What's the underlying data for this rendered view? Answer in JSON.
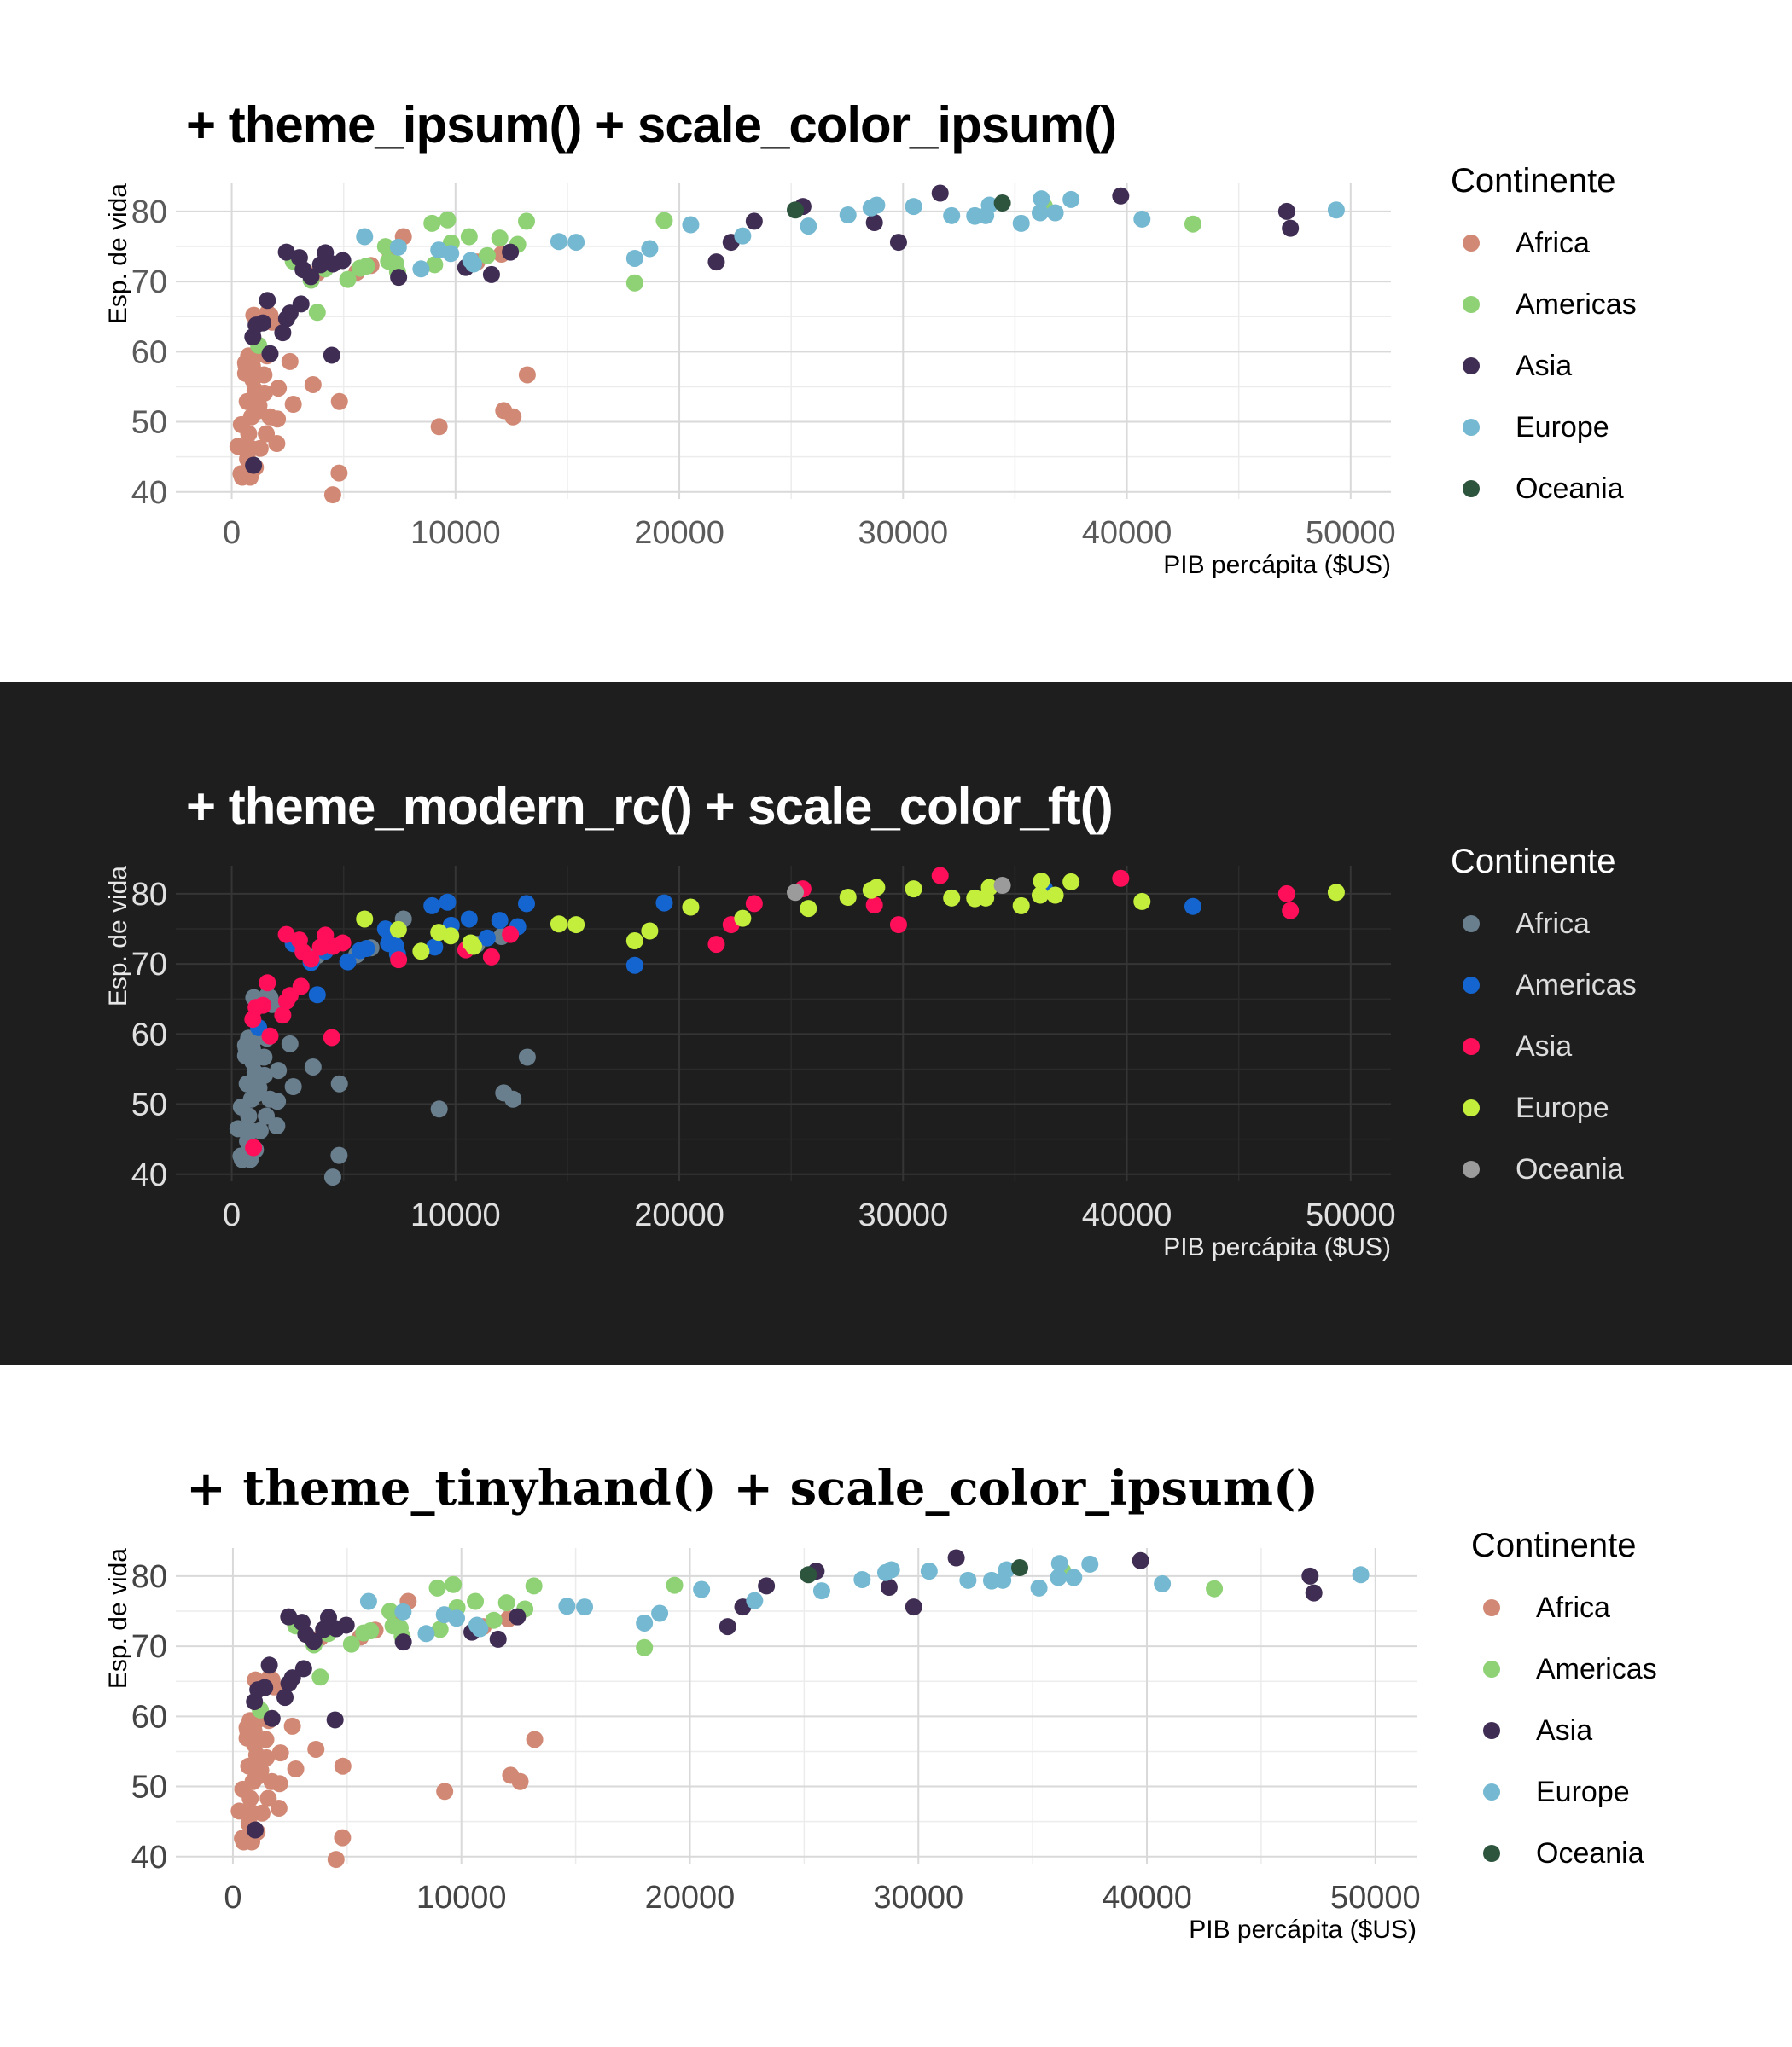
{
  "chart_data": [
    {
      "type": "scatter",
      "title": "+ theme_ipsum() + scale_color_ipsum()",
      "xlabel": "PIB percápita ($US)",
      "ylabel": "Esp. de vida",
      "xlim": [
        -2500,
        51800
      ],
      "ylim": [
        39,
        84
      ],
      "x_ticks": [
        "0",
        "10000",
        "20000",
        "30000",
        "40000",
        "50000"
      ],
      "y_ticks": [
        "40",
        "50",
        "60",
        "70",
        "80"
      ],
      "legend_title": "Continente",
      "legend_position": "right",
      "grid": true,
      "theme": "light",
      "colors": {
        "Africa": "#d18975",
        "Americas": "#8fd175",
        "Asia": "#3f2d54",
        "Europe": "#75b8d1",
        "Oceania": "#2d543d"
      }
    },
    {
      "type": "scatter",
      "title": "+ theme_modern_rc() + scale_color_ft()",
      "xlabel": "PIB percápita ($US)",
      "ylabel": "Esp. de vida",
      "xlim": [
        -2500,
        51800
      ],
      "ylim": [
        39,
        84
      ],
      "x_ticks": [
        "0",
        "10000",
        "20000",
        "30000",
        "40000",
        "50000"
      ],
      "y_ticks": [
        "40",
        "50",
        "60",
        "70",
        "80"
      ],
      "legend_title": "Continente",
      "legend_position": "right",
      "grid": true,
      "theme": "dark",
      "colors": {
        "Africa": "#6a7f8e",
        "Americas": "#1565d0",
        "Asia": "#ff0f5a",
        "Europe": "#c3ef3c",
        "Oceania": "#9b9b9b"
      }
    },
    {
      "type": "scatter",
      "title": "+ theme_tinyhand() + scale_color_ipsum()",
      "xlabel": "PIB percápita ($US)",
      "ylabel": "Esp. de vida",
      "xlim": [
        -2500,
        51800
      ],
      "ylim": [
        39,
        84
      ],
      "x_ticks": [
        "0",
        "10000",
        "20000",
        "30000",
        "40000",
        "50000"
      ],
      "y_ticks": [
        "40",
        "50",
        "60",
        "70",
        "80"
      ],
      "legend_title": "Continente",
      "legend_position": "right",
      "grid": true,
      "theme": "light",
      "colors": {
        "Africa": "#d18975",
        "Americas": "#8fd175",
        "Asia": "#3f2d54",
        "Europe": "#75b8d1",
        "Oceania": "#2d543d"
      }
    }
  ],
  "series": {
    "Africa": [
      [
        6223,
        72.3
      ],
      [
        4797,
        42.7
      ],
      [
        1441,
        56.7
      ],
      [
        12570,
        50.7
      ],
      [
        1217,
        52.3
      ],
      [
        430,
        49.6
      ],
      [
        2042,
        50.4
      ],
      [
        706,
        44.7
      ],
      [
        1704,
        50.7
      ],
      [
        986,
        65.2
      ],
      [
        277,
        46.5
      ],
      [
        3633,
        55.3
      ],
      [
        1545,
        48.3
      ],
      [
        2082,
        54.8
      ],
      [
        5581,
        71.3
      ],
      [
        12154,
        51.6
      ],
      [
        641,
        58.0
      ],
      [
        691,
        52.9
      ],
      [
        13206,
        56.7
      ],
      [
        753,
        59.4
      ],
      [
        1327,
        60.0
      ],
      [
        943,
        56.0
      ],
      [
        580,
        46.4
      ],
      [
        1463,
        54.1
      ],
      [
        1569,
        59.4
      ],
      [
        415,
        42.6
      ],
      [
        12057,
        73.9
      ],
      [
        1045,
        59.4
      ],
      [
        759,
        48.3
      ],
      [
        1042,
        54.5
      ],
      [
        1803,
        64.2
      ],
      [
        10957,
        72.8
      ],
      [
        3820,
        71.2
      ],
      [
        824,
        42.1
      ],
      [
        4811,
        52.9
      ],
      [
        620,
        56.9
      ],
      [
        2014,
        46.9
      ],
      [
        7670,
        76.4
      ],
      [
        863,
        46.2
      ],
      [
        1598,
        65.5
      ],
      [
        1712,
        65.2
      ],
      [
        862,
        43.5
      ],
      [
        926,
        57.9
      ],
      [
        9270,
        49.3
      ],
      [
        2602,
        58.6
      ],
      [
        4513,
        39.6
      ],
      [
        2749,
        52.5
      ],
      [
        619,
        58.4
      ],
      [
        883,
        50.7
      ],
      [
        1056,
        43.5
      ],
      [
        470,
        42.4
      ],
      [
        1271,
        46.2
      ],
      [
        7093,
        73.9
      ],
      [
        1133,
        51.5
      ],
      [
        470,
        42.1
      ]
    ],
    "Americas": [
      [
        12779,
        75.3
      ],
      [
        3822,
        65.6
      ],
      [
        9066,
        72.4
      ],
      [
        36319,
        80.7
      ],
      [
        13172,
        78.6
      ],
      [
        7007,
        72.9
      ],
      [
        9645,
        78.8
      ],
      [
        8948,
        78.3
      ],
      [
        6025,
        72.2
      ],
      [
        6873,
        74.99
      ],
      [
        5728,
        71.9
      ],
      [
        5186,
        70.3
      ],
      [
        1202,
        60.9
      ],
      [
        3548,
        70.2
      ],
      [
        7321,
        72.6
      ],
      [
        11978,
        76.2
      ],
      [
        2749,
        72.9
      ],
      [
        9809,
        75.5
      ],
      [
        4173,
        71.8
      ],
      [
        7408,
        71.4
      ],
      [
        19329,
        78.7
      ],
      [
        18009,
        69.8
      ],
      [
        42952,
        78.2
      ],
      [
        10611,
        76.4
      ],
      [
        11416,
        73.7
      ]
    ],
    "Asia": [
      [
        975,
        43.8
      ],
      [
        29796,
        75.6
      ],
      [
        1391,
        64.1
      ],
      [
        1713,
        59.7
      ],
      [
        4959,
        73.0
      ],
      [
        39725,
        82.2
      ],
      [
        2452,
        64.7
      ],
      [
        3541,
        70.7
      ],
      [
        11606,
        71.0
      ],
      [
        4471,
        59.5
      ],
      [
        25523,
        80.7
      ],
      [
        31656,
        82.6
      ],
      [
        4519,
        72.5
      ],
      [
        1593,
        67.3
      ],
      [
        23348,
        78.6
      ],
      [
        47307,
        77.6
      ],
      [
        10461,
        72.0
      ],
      [
        12452,
        74.2
      ],
      [
        3096,
        66.8
      ],
      [
        944,
        62.1
      ],
      [
        1091,
        63.8
      ],
      [
        22316,
        75.6
      ],
      [
        2606,
        65.5
      ],
      [
        3190,
        71.7
      ],
      [
        21655,
        72.8
      ],
      [
        47143,
        80.0
      ],
      [
        3970,
        72.4
      ],
      [
        4185,
        74.1
      ],
      [
        28718,
        78.4
      ],
      [
        7458,
        70.6
      ],
      [
        2442,
        74.2
      ],
      [
        3025,
        73.4
      ],
      [
        2281,
        62.7
      ]
    ],
    "Europe": [
      [
        5937,
        76.4
      ],
      [
        36126,
        79.8
      ],
      [
        33693,
        79.4
      ],
      [
        7447,
        74.9
      ],
      [
        10681,
        73.0
      ],
      [
        14619,
        75.7
      ],
      [
        22833,
        76.5
      ],
      [
        35278,
        78.3
      ],
      [
        33207,
        79.3
      ],
      [
        30470,
        80.7
      ],
      [
        32170,
        79.4
      ],
      [
        27538,
        79.5
      ],
      [
        18009,
        73.3
      ],
      [
        36181,
        81.8
      ],
      [
        40676,
        78.9
      ],
      [
        28570,
        80.5
      ],
      [
        9254,
        74.5
      ],
      [
        36798,
        79.8
      ],
      [
        49357,
        80.2
      ],
      [
        15390,
        75.6
      ],
      [
        20510,
        78.1
      ],
      [
        10808,
        72.5
      ],
      [
        9787,
        74.0
      ],
      [
        18678,
        74.7
      ],
      [
        25768,
        77.9
      ],
      [
        28821,
        80.9
      ],
      [
        33860,
        80.9
      ],
      [
        37506,
        81.7
      ],
      [
        8458,
        71.8
      ],
      [
        33203,
        79.4
      ]
    ],
    "Oceania": [
      [
        34435,
        81.2
      ],
      [
        25185,
        80.2
      ]
    ]
  },
  "legend": [
    "Africa",
    "Americas",
    "Asia",
    "Europe",
    "Oceania"
  ]
}
